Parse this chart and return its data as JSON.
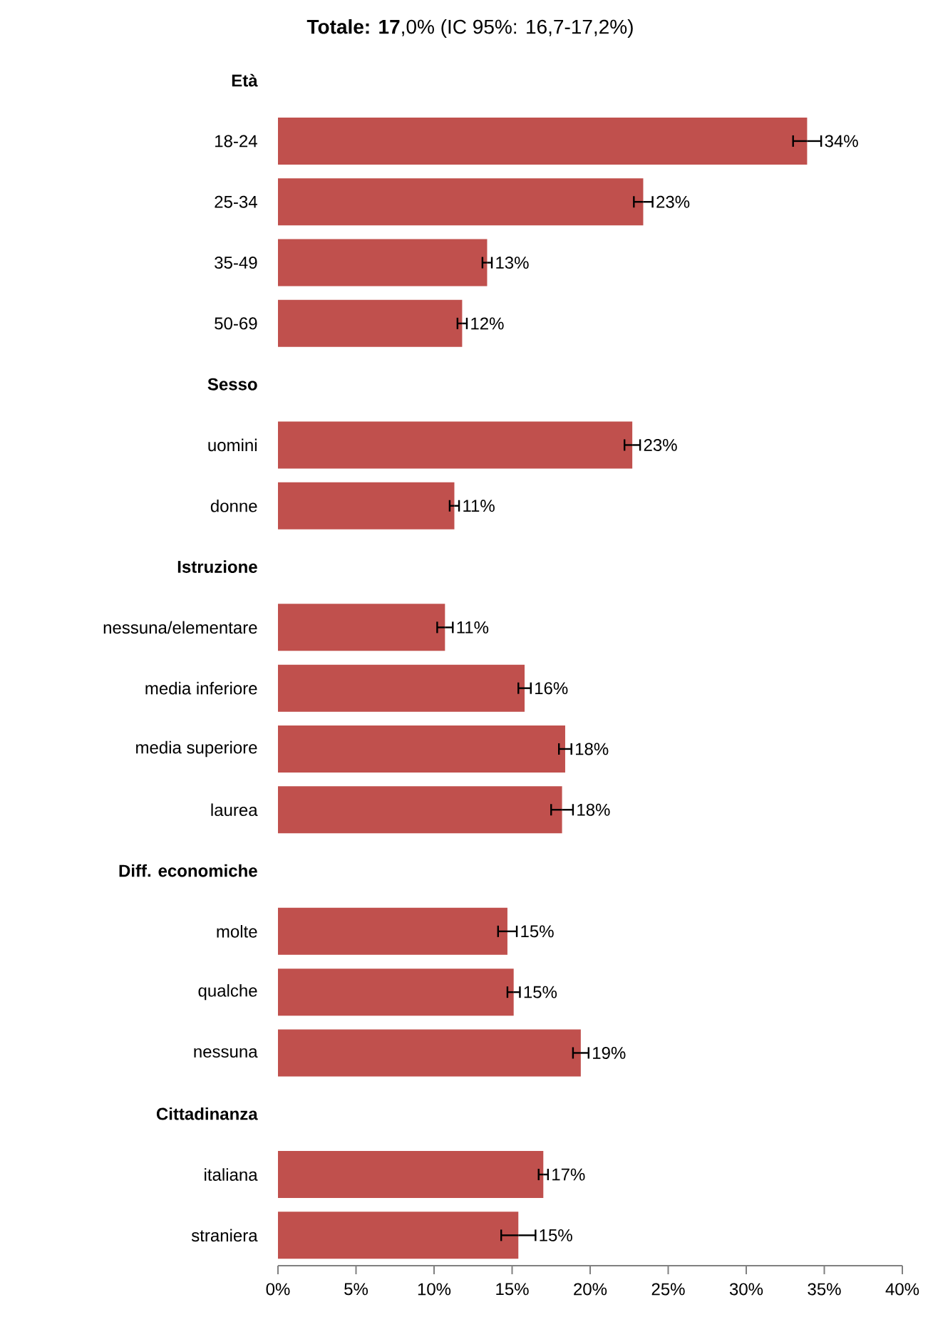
{
  "chart_data": {
    "type": "bar",
    "orientation": "horizontal",
    "title": "**Totale: 17**,0% (IC 95%: 16,7-17,2%)",
    "categories": [
      "Età",
      "18-24",
      "25-34",
      "35-49",
      "50-69",
      "Sesso",
      "uomini",
      "donne",
      "Istruzione",
      "nessuna/elementare",
      "media inferiore",
      "media superiore",
      "laurea",
      "Diff. economiche",
      "molte",
      "qualche",
      "nessuna",
      "Cittadinanza",
      "italiana",
      "straniera"
    ],
    "values": [
      null,
      33.9,
      23.4,
      13.4,
      11.8,
      null,
      22.7,
      11.3,
      null,
      10.7,
      15.8,
      18.4,
      18.2,
      null,
      14.7,
      15.1,
      19.4,
      null,
      17.0,
      15.4
    ],
    "errors": [
      null,
      0.9,
      0.6,
      0.3,
      0.3,
      null,
      0.5,
      0.3,
      null,
      0.5,
      0.4,
      0.4,
      0.7,
      null,
      0.6,
      0.4,
      0.5,
      null,
      0.3,
      1.1
    ],
    "value_labels": [
      null,
      "34%",
      "23%",
      "13%",
      "12%",
      null,
      "23%",
      "11%",
      null,
      "11%",
      "16%",
      "18%",
      "18%",
      null,
      "15%",
      "15%",
      "19%",
      null,
      "17%",
      "15%"
    ],
    "color": "#c0504d",
    "xlim": [
      0,
      40
    ],
    "xticks": [
      {
        "value": 0,
        "label": "0%"
      },
      {
        "value": 5,
        "label": "5%"
      },
      {
        "value": 10,
        "label": "10%"
      },
      {
        "value": 15,
        "label": "15%"
      },
      {
        "value": 20,
        "label": "20%"
      },
      {
        "value": 25,
        "label": "25%"
      },
      {
        "value": 30,
        "label": "30%"
      },
      {
        "value": 35,
        "label": "35%"
      },
      {
        "value": 40,
        "label": "40%"
      }
    ]
  }
}
